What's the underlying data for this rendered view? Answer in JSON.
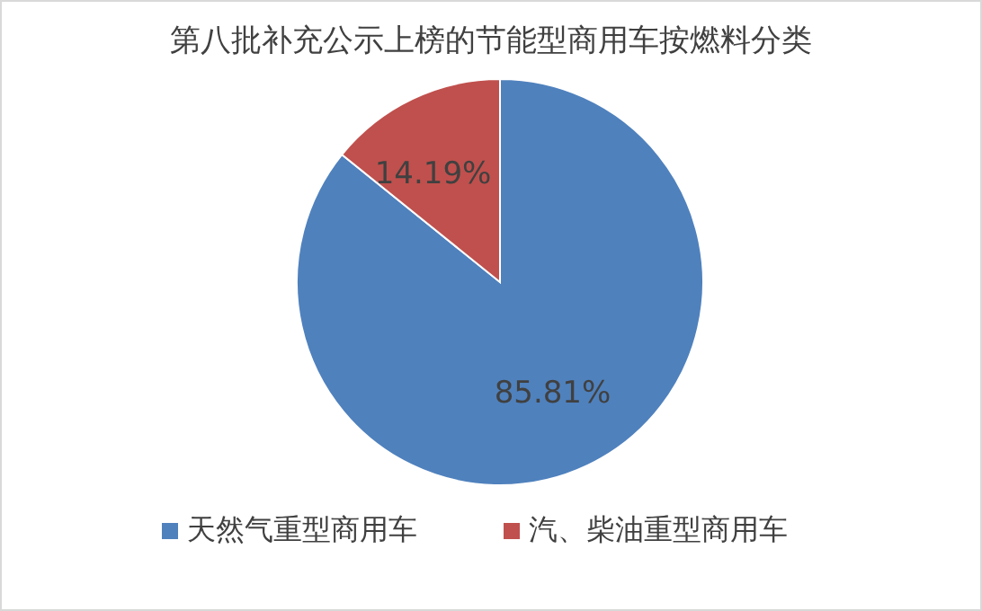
{
  "chart_data": {
    "type": "pie",
    "title": "第八批补充公示上榜的节能型商用车按燃料分类",
    "categories": [
      "天然气重型商用车",
      "汽、柴油重型商用车"
    ],
    "values": [
      85.81,
      14.19
    ],
    "colors": [
      "#4f81bd",
      "#c0504d"
    ],
    "value_labels": [
      "85.81%",
      "14.19%"
    ],
    "legend": "bottom"
  }
}
